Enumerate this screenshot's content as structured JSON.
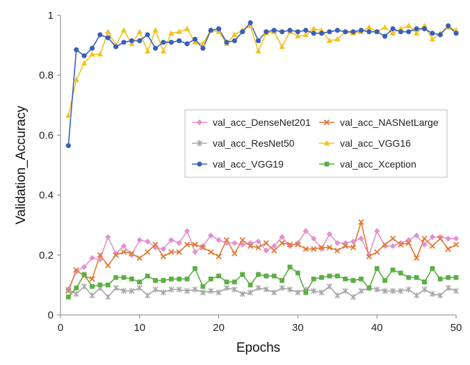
{
  "chart_data": {
    "type": "line",
    "title": "",
    "xlabel": "Epochs",
    "ylabel": "Validation_Accuracy",
    "xlim": [
      0,
      50
    ],
    "ylim": [
      0,
      1
    ],
    "xticks": [
      0,
      10,
      20,
      30,
      40,
      50
    ],
    "yticks": [
      0,
      0.2,
      0.4,
      0.6,
      0.8,
      1
    ],
    "ytick_labels": [
      "0",
      "0.2",
      "0.4",
      "0.6",
      "0.8",
      "1"
    ],
    "grid": false,
    "legend_position": "center-right, two columns",
    "x": [
      1,
      2,
      3,
      4,
      5,
      6,
      7,
      8,
      9,
      10,
      11,
      12,
      13,
      14,
      15,
      16,
      17,
      18,
      19,
      20,
      21,
      22,
      23,
      24,
      25,
      26,
      27,
      28,
      29,
      30,
      31,
      32,
      33,
      34,
      35,
      36,
      37,
      38,
      39,
      40,
      41,
      42,
      43,
      44,
      45,
      46,
      47,
      48,
      49,
      50
    ],
    "series": [
      {
        "name": "val_acc_DenseNet201",
        "color": "#E58FD0",
        "marker": "diamond",
        "values": [
          0.085,
          0.145,
          0.16,
          0.19,
          0.185,
          0.26,
          0.205,
          0.23,
          0.2,
          0.25,
          0.245,
          0.225,
          0.22,
          0.25,
          0.24,
          0.28,
          0.21,
          0.23,
          0.265,
          0.25,
          0.24,
          0.24,
          0.235,
          0.24,
          0.245,
          0.215,
          0.23,
          0.26,
          0.23,
          0.24,
          0.28,
          0.255,
          0.22,
          0.27,
          0.24,
          0.24,
          0.245,
          0.255,
          0.2,
          0.28,
          0.23,
          0.23,
          0.24,
          0.25,
          0.265,
          0.235,
          0.26,
          0.26,
          0.255,
          0.255
        ]
      },
      {
        "name": "val_acc_NASNetLarge",
        "color": "#E0782E",
        "marker": "x",
        "values": [
          0.08,
          0.15,
          0.13,
          0.12,
          0.2,
          0.165,
          0.2,
          0.21,
          0.205,
          0.19,
          0.21,
          0.235,
          0.195,
          0.21,
          0.21,
          0.235,
          0.235,
          0.225,
          0.21,
          0.195,
          0.25,
          0.205,
          0.25,
          0.23,
          0.225,
          0.24,
          0.215,
          0.24,
          0.235,
          0.235,
          0.22,
          0.22,
          0.225,
          0.225,
          0.215,
          0.23,
          0.225,
          0.31,
          0.195,
          0.21,
          0.235,
          0.255,
          0.235,
          0.24,
          0.19,
          0.255,
          0.23,
          0.255,
          0.22,
          0.235
        ]
      },
      {
        "name": "val_acc_ResNet50",
        "color": "#A6A6A6",
        "marker": "star",
        "values": [
          0.085,
          0.07,
          0.095,
          0.065,
          0.09,
          0.06,
          0.09,
          0.08,
          0.08,
          0.09,
          0.065,
          0.085,
          0.075,
          0.085,
          0.085,
          0.08,
          0.085,
          0.075,
          0.08,
          0.075,
          0.09,
          0.085,
          0.07,
          0.075,
          0.09,
          0.085,
          0.075,
          0.09,
          0.085,
          0.075,
          0.085,
          0.08,
          0.075,
          0.095,
          0.065,
          0.08,
          0.06,
          0.08,
          0.09,
          0.085,
          0.08,
          0.08,
          0.08,
          0.085,
          0.065,
          0.085,
          0.07,
          0.065,
          0.09,
          0.08
        ]
      },
      {
        "name": "val_acc_VGG16",
        "color": "#F2C31A",
        "marker": "triangle",
        "values": [
          0.665,
          0.785,
          0.84,
          0.87,
          0.87,
          0.945,
          0.9,
          0.95,
          0.905,
          0.945,
          0.88,
          0.95,
          0.88,
          0.94,
          0.945,
          0.955,
          0.91,
          0.905,
          0.95,
          0.945,
          0.905,
          0.935,
          0.95,
          0.965,
          0.88,
          0.94,
          0.945,
          0.895,
          0.945,
          0.93,
          0.935,
          0.955,
          0.95,
          0.915,
          0.92,
          0.945,
          0.94,
          0.945,
          0.96,
          0.945,
          0.96,
          0.94,
          0.955,
          0.965,
          0.94,
          0.965,
          0.92,
          0.94,
          0.96,
          0.95
        ]
      },
      {
        "name": "val_acc_VGG19",
        "color": "#3A5FB8",
        "marker": "circle",
        "values": [
          0.565,
          0.885,
          0.865,
          0.89,
          0.935,
          0.925,
          0.895,
          0.91,
          0.915,
          0.915,
          0.935,
          0.89,
          0.91,
          0.91,
          0.915,
          0.905,
          0.92,
          0.89,
          0.95,
          0.955,
          0.91,
          0.915,
          0.945,
          0.975,
          0.915,
          0.945,
          0.95,
          0.945,
          0.95,
          0.945,
          0.95,
          0.94,
          0.94,
          0.945,
          0.95,
          0.945,
          0.945,
          0.95,
          0.945,
          0.945,
          0.93,
          0.955,
          0.945,
          0.945,
          0.955,
          0.955,
          0.94,
          0.935,
          0.965,
          0.94
        ]
      },
      {
        "name": "val_acc_Xception",
        "color": "#5BAE43",
        "marker": "square",
        "values": [
          0.06,
          0.09,
          0.135,
          0.095,
          0.1,
          0.1,
          0.125,
          0.125,
          0.12,
          0.11,
          0.13,
          0.115,
          0.115,
          0.12,
          0.12,
          0.12,
          0.155,
          0.095,
          0.12,
          0.13,
          0.11,
          0.11,
          0.135,
          0.1,
          0.135,
          0.13,
          0.13,
          0.115,
          0.16,
          0.14,
          0.075,
          0.12,
          0.125,
          0.13,
          0.13,
          0.12,
          0.115,
          0.12,
          0.09,
          0.155,
          0.115,
          0.15,
          0.14,
          0.125,
          0.125,
          0.11,
          0.155,
          0.12,
          0.125,
          0.125
        ]
      }
    ]
  }
}
